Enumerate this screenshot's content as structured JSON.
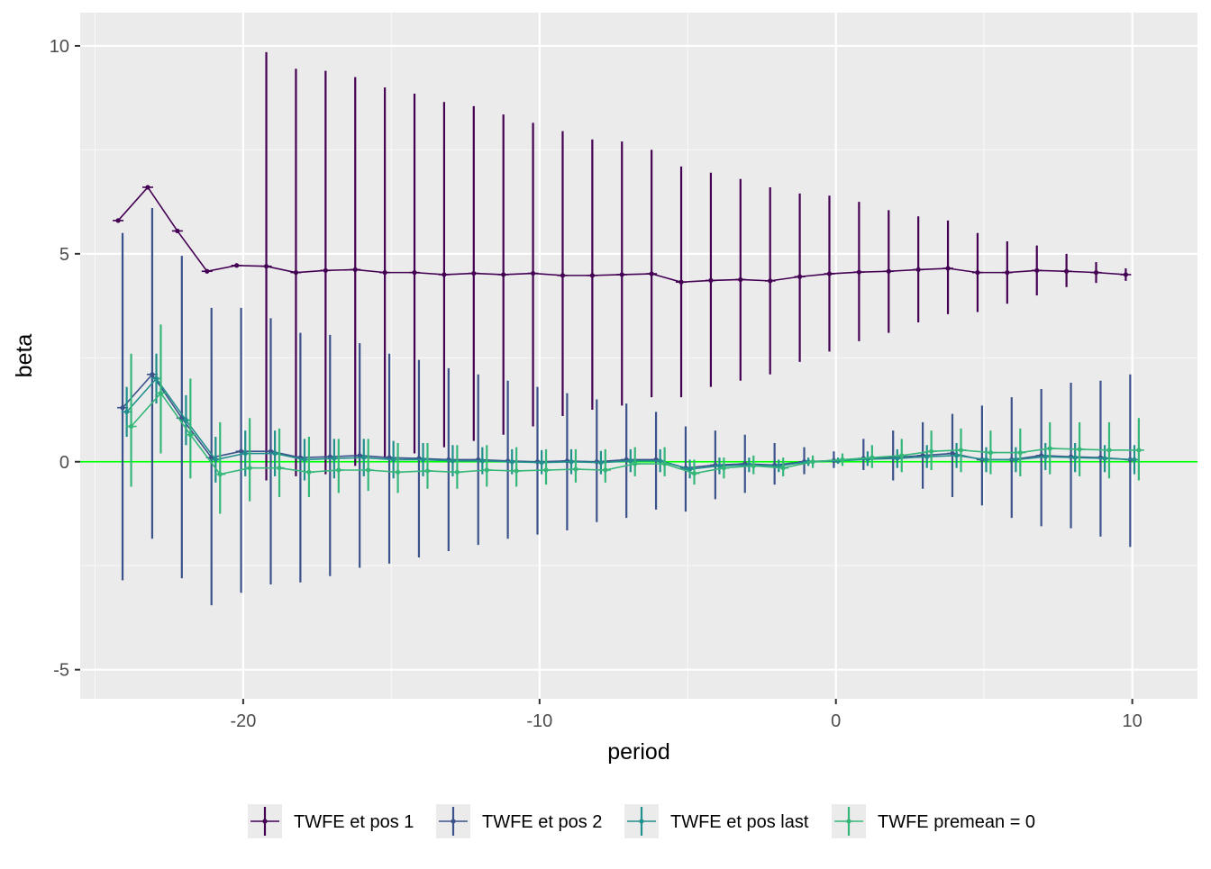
{
  "chart_data": {
    "type": "line",
    "title": "",
    "xlabel": "period",
    "ylabel": "beta",
    "xlim": [
      -25.5,
      12.2
    ],
    "ylim": [
      -5.7,
      10.8
    ],
    "x_ticks": [
      -20,
      -10,
      0,
      10
    ],
    "x_tick_labels": [
      "-20",
      "-10",
      "0",
      "10"
    ],
    "y_ticks": [
      -5,
      0,
      5,
      10
    ],
    "y_tick_labels": [
      "-5",
      "0",
      "5",
      "10"
    ],
    "grid": true,
    "legend_position": "bottom",
    "reference_line": {
      "y": 0,
      "color": "#00ff00"
    },
    "series": [
      {
        "name": "TWFE et pos 1",
        "color": "#440154",
        "offset": -0.22,
        "x": [
          -24,
          -23,
          -22,
          -21,
          -20,
          -19,
          -18,
          -17,
          -16,
          -15,
          -14,
          -13,
          -12,
          -11,
          -10,
          -9,
          -8,
          -7,
          -6,
          -5,
          -4,
          -3,
          -2,
          -1,
          0,
          1,
          2,
          3,
          4,
          5,
          6,
          7,
          8,
          9,
          10
        ],
        "y": [
          5.8,
          6.6,
          5.55,
          4.58,
          4.72,
          4.7,
          4.55,
          4.6,
          4.62,
          4.55,
          4.55,
          4.5,
          4.53,
          4.5,
          4.53,
          4.48,
          4.48,
          4.5,
          4.52,
          4.32,
          4.36,
          4.38,
          4.35,
          4.45,
          4.52,
          4.56,
          4.58,
          4.62,
          4.65,
          4.55,
          4.55,
          4.6,
          4.58,
          4.55,
          4.5
        ],
        "lower": [
          null,
          null,
          null,
          null,
          null,
          -0.45,
          -0.35,
          -0.3,
          -0.1,
          0.1,
          0.2,
          0.35,
          0.5,
          0.65,
          0.85,
          1.1,
          1.25,
          1.35,
          1.55,
          1.55,
          1.8,
          1.95,
          2.1,
          2.4,
          2.65,
          2.9,
          3.1,
          3.35,
          3.55,
          3.6,
          3.8,
          4.0,
          4.2,
          4.3,
          4.35
        ],
        "upper": [
          null,
          null,
          null,
          null,
          null,
          9.85,
          9.45,
          9.4,
          9.25,
          9.0,
          8.85,
          8.65,
          8.55,
          8.35,
          8.15,
          7.95,
          7.75,
          7.7,
          7.5,
          7.1,
          6.95,
          6.8,
          6.6,
          6.45,
          6.4,
          6.25,
          6.05,
          5.9,
          5.8,
          5.5,
          5.3,
          5.2,
          5.0,
          4.8,
          4.65
        ]
      },
      {
        "name": "TWFE et pos 2",
        "color": "#3b528b",
        "offset": -0.07,
        "x": [
          -24,
          -23,
          -22,
          -21,
          -20,
          -19,
          -18,
          -17,
          -16,
          -15,
          -14,
          -13,
          -12,
          -11,
          -10,
          -9,
          -8,
          -7,
          -6,
          -5,
          -4,
          -3,
          -2,
          -1,
          0,
          1,
          2,
          3,
          4,
          5,
          6,
          7,
          8,
          9,
          10
        ],
        "y": [
          1.3,
          2.1,
          1.05,
          0.1,
          0.25,
          0.25,
          0.1,
          0.12,
          0.15,
          0.1,
          0.08,
          0.05,
          0.05,
          0.02,
          0.0,
          0.02,
          0.0,
          0.05,
          0.05,
          -0.15,
          -0.08,
          -0.05,
          -0.08,
          0.0,
          0.03,
          0.08,
          0.1,
          0.15,
          0.2,
          0.05,
          0.05,
          0.15,
          0.12,
          0.1,
          0.05
        ],
        "lower": [
          -2.85,
          -1.85,
          -2.8,
          -3.45,
          -3.15,
          -2.95,
          -2.9,
          -2.75,
          -2.55,
          -2.45,
          -2.3,
          -2.15,
          -2.0,
          -1.85,
          -1.75,
          -1.65,
          -1.45,
          -1.35,
          -1.15,
          -1.2,
          -0.9,
          -0.75,
          -0.55,
          -0.3,
          -0.15,
          -0.2,
          -0.45,
          -0.65,
          -0.85,
          -1.05,
          -1.35,
          -1.55,
          -1.6,
          -1.8,
          -2.05
        ],
        "upper": [
          5.5,
          6.1,
          4.95,
          3.7,
          3.7,
          3.45,
          3.1,
          3.05,
          2.85,
          2.6,
          2.45,
          2.25,
          2.1,
          1.95,
          1.8,
          1.65,
          1.5,
          1.4,
          1.2,
          0.85,
          0.75,
          0.65,
          0.45,
          0.35,
          0.25,
          0.55,
          0.75,
          0.95,
          1.15,
          1.35,
          1.55,
          1.75,
          1.9,
          1.95,
          2.1
        ]
      },
      {
        "name": "TWFE et pos last",
        "color": "#21908c",
        "offset": 0.07,
        "x": [
          -24,
          -23,
          -22,
          -21,
          -20,
          -19,
          -18,
          -17,
          -16,
          -15,
          -14,
          -13,
          -12,
          -11,
          -10,
          -9,
          -8,
          -7,
          -6,
          -5,
          -4,
          -3,
          -2,
          -1,
          0,
          1,
          2,
          3,
          4,
          5,
          6,
          7,
          8,
          9,
          10
        ],
        "y": [
          1.2,
          2.0,
          1.0,
          0.05,
          0.2,
          0.2,
          0.05,
          0.08,
          0.1,
          0.05,
          0.05,
          0.02,
          0.02,
          0.0,
          -0.02,
          0.0,
          -0.02,
          0.02,
          0.02,
          -0.18,
          -0.1,
          -0.08,
          -0.1,
          0.0,
          0.02,
          0.06,
          0.08,
          0.12,
          0.15,
          0.05,
          0.05,
          0.12,
          0.1,
          0.08,
          0.05
        ],
        "lower": [
          0.6,
          1.4,
          0.4,
          -0.5,
          -0.35,
          -0.35,
          -0.45,
          -0.4,
          -0.35,
          -0.4,
          -0.35,
          -0.35,
          -0.3,
          -0.3,
          -0.3,
          -0.3,
          -0.3,
          -0.25,
          -0.25,
          -0.4,
          -0.3,
          -0.25,
          -0.25,
          -0.1,
          -0.05,
          -0.1,
          -0.15,
          -0.15,
          -0.15,
          -0.25,
          -0.25,
          -0.2,
          -0.25,
          -0.25,
          -0.3
        ],
        "upper": [
          1.8,
          2.6,
          1.6,
          0.6,
          0.75,
          0.75,
          0.55,
          0.55,
          0.55,
          0.5,
          0.45,
          0.4,
          0.35,
          0.3,
          0.28,
          0.3,
          0.26,
          0.3,
          0.3,
          0.05,
          0.1,
          0.1,
          0.05,
          0.1,
          0.1,
          0.25,
          0.3,
          0.4,
          0.45,
          0.35,
          0.35,
          0.45,
          0.45,
          0.4,
          0.4
        ]
      },
      {
        "name": "TWFE premean = 0",
        "color": "#35b779",
        "offset": 0.22,
        "x": [
          -24,
          -23,
          -22,
          -21,
          -20,
          -19,
          -18,
          -17,
          -16,
          -15,
          -14,
          -13,
          -12,
          -11,
          -10,
          -9,
          -8,
          -7,
          -6,
          -5,
          -4,
          -3,
          -2,
          -1,
          0,
          1,
          2,
          3,
          4,
          5,
          6,
          7,
          8,
          9,
          10
        ],
        "y": [
          0.85,
          1.65,
          0.65,
          -0.3,
          -0.15,
          -0.15,
          -0.25,
          -0.2,
          -0.2,
          -0.25,
          -0.22,
          -0.25,
          -0.2,
          -0.22,
          -0.2,
          -0.18,
          -0.2,
          -0.05,
          -0.05,
          -0.28,
          -0.15,
          -0.1,
          -0.15,
          0.0,
          0.05,
          0.1,
          0.15,
          0.25,
          0.28,
          0.22,
          0.22,
          0.32,
          0.3,
          0.28,
          0.28
        ],
        "lower": [
          -0.6,
          0.2,
          -0.4,
          -1.25,
          -0.95,
          -0.85,
          -0.85,
          -0.75,
          -0.7,
          -0.75,
          -0.65,
          -0.65,
          -0.6,
          -0.6,
          -0.55,
          -0.5,
          -0.5,
          -0.35,
          -0.35,
          -0.55,
          -0.4,
          -0.3,
          -0.35,
          -0.15,
          -0.1,
          -0.15,
          -0.25,
          -0.2,
          -0.25,
          -0.3,
          -0.35,
          -0.3,
          -0.35,
          -0.4,
          -0.45
        ],
        "upper": [
          2.6,
          3.3,
          2.0,
          0.95,
          1.05,
          0.8,
          0.6,
          0.55,
          0.55,
          0.45,
          0.45,
          0.4,
          0.4,
          0.35,
          0.3,
          0.3,
          0.3,
          0.35,
          0.35,
          0.05,
          0.1,
          0.15,
          0.1,
          0.15,
          0.2,
          0.4,
          0.55,
          0.75,
          0.8,
          0.75,
          0.8,
          0.95,
          0.95,
          0.95,
          1.05
        ]
      }
    ]
  }
}
